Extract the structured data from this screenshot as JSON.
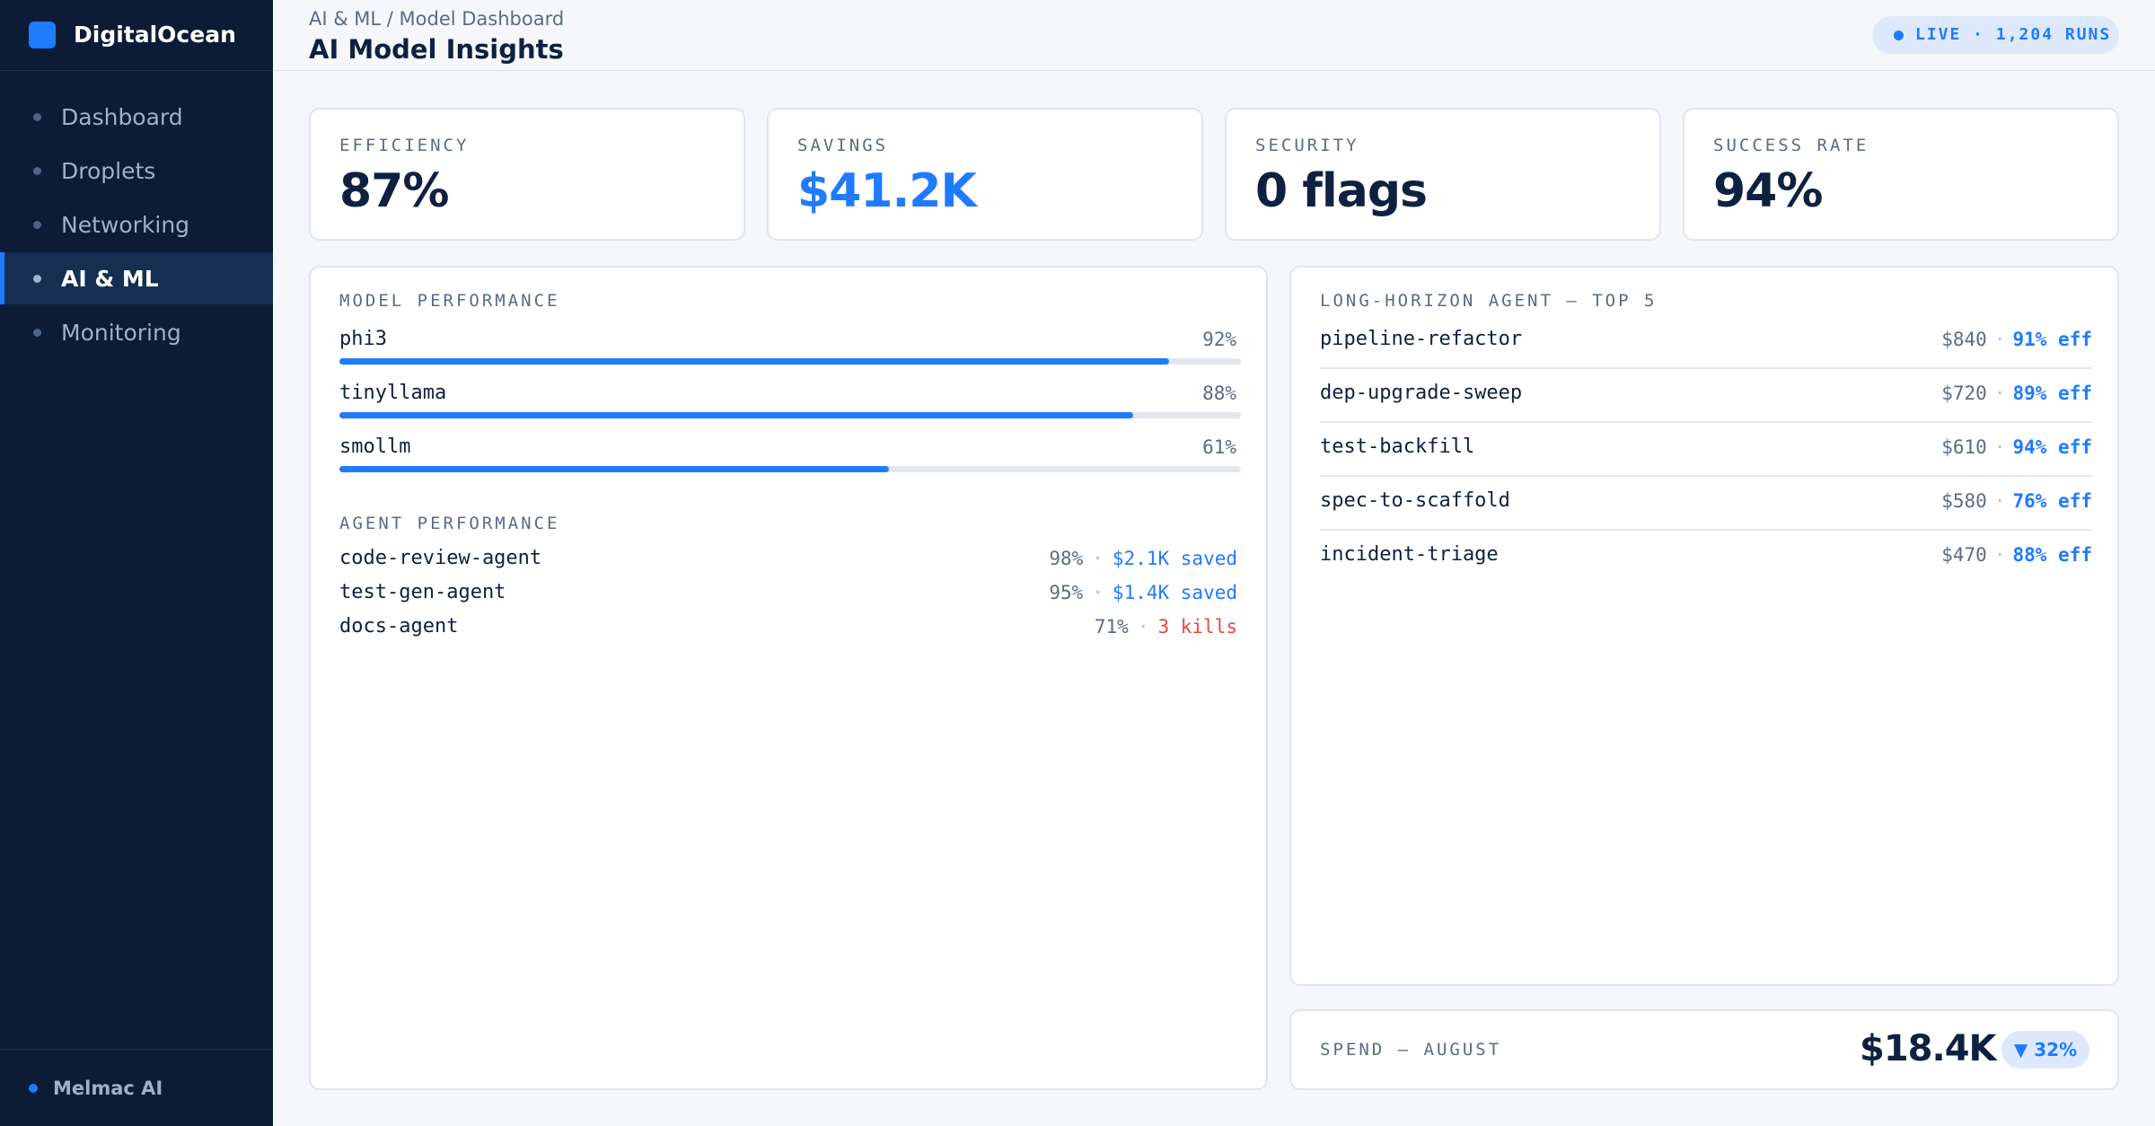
{
  "app": {
    "brand": "DigitalOcean"
  },
  "sidebar": {
    "items": [
      {
        "label": "Dashboard",
        "active": false
      },
      {
        "label": "Droplets",
        "active": false
      },
      {
        "label": "Networking",
        "active": false
      },
      {
        "label": "AI & ML",
        "active": true
      },
      {
        "label": "Monitoring",
        "active": false
      }
    ],
    "footer": "Melmac AI"
  },
  "header": {
    "breadcrumb": "AI & ML / Model Dashboard",
    "title": "AI Model Insights",
    "live_badge": "LIVE · 1,204 RUNS"
  },
  "stats": [
    {
      "label": "EFFICIENCY",
      "value": "87%"
    },
    {
      "label": "SAVINGS",
      "value": "$41.2K"
    },
    {
      "label": "SECURITY",
      "value": "0 flags"
    },
    {
      "label": "SUCCESS RATE",
      "value": "94%"
    }
  ],
  "model_performance": {
    "label": "MODEL PERFORMANCE",
    "rows": [
      {
        "name": "phi3",
        "pct": "92%",
        "value": 0.92
      },
      {
        "name": "tinyllama",
        "pct": "88%",
        "value": 0.88
      },
      {
        "name": "smollm",
        "pct": "61%",
        "value": 0.61
      }
    ]
  },
  "agent_performance": {
    "label": "AGENT PERFORMANCE",
    "separator": "·",
    "rows": [
      {
        "name": "code-review-agent",
        "pct": "98%",
        "detail": "$2.1K saved",
        "status": "good"
      },
      {
        "name": "test-gen-agent",
        "pct": "95%",
        "detail": "$1.4K saved",
        "status": "good"
      },
      {
        "name": "docs-agent",
        "pct": "71%",
        "detail": "3 kills",
        "status": "bad"
      }
    ]
  },
  "long_horizon": {
    "label": "LONG-HORIZON AGENT — TOP 5",
    "separator": "·",
    "rows": [
      {
        "name": "pipeline-refactor",
        "cost": "$840",
        "eff": "91% eff"
      },
      {
        "name": "dep-upgrade-sweep",
        "cost": "$720",
        "eff": "89% eff"
      },
      {
        "name": "test-backfill",
        "cost": "$610",
        "eff": "94% eff"
      },
      {
        "name": "spec-to-scaffold",
        "cost": "$580",
        "eff": "76% eff"
      },
      {
        "name": "incident-triage",
        "cost": "$470",
        "eff": "88% eff"
      }
    ]
  },
  "spend": {
    "label": "SPEND — AUGUST",
    "value": "$18.4K",
    "delta": "▼ 32%"
  },
  "colors": {
    "accent": "#1f7bff",
    "sidebar_bg": "#0c1c36",
    "danger": "#e5483f"
  }
}
